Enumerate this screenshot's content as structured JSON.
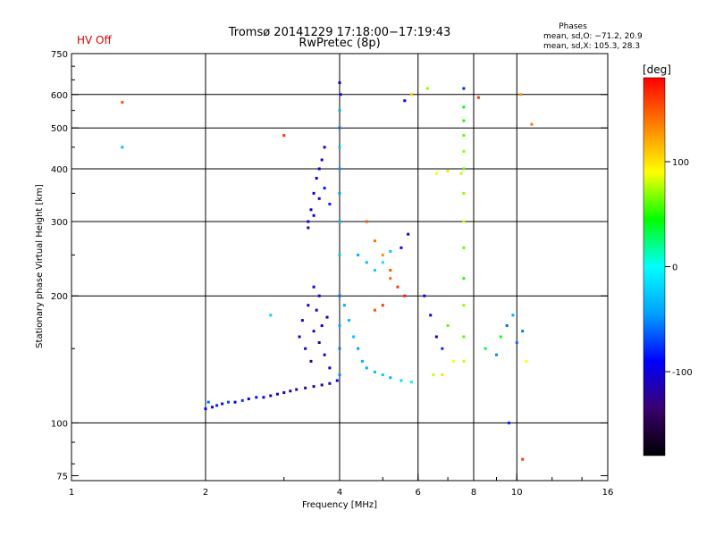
{
  "chart_data": {
    "type": "scatter",
    "title": "Tromsø 20141229 17:18:00−17:19:43",
    "subtitle": "RwPretec (8p)",
    "status_label": "HV Off",
    "status_color": "#dd0000",
    "phase_stats": {
      "heading": "Phases",
      "line1": "mean, sd,O: −71.2, 20.9",
      "line2": "mean, sd,X: 105.3, 28.3"
    },
    "xlabel": "Frequency [MHz]",
    "ylabel": "Stationary phase Virtual Height [km]",
    "x_scale": "log2",
    "y_scale": "log",
    "xlim": [
      1,
      16
    ],
    "ylim": [
      73,
      750
    ],
    "x_ticks": [
      {
        "value": 1,
        "label": "1"
      },
      {
        "value": 2,
        "label": "2"
      },
      {
        "value": 4,
        "label": "4"
      },
      {
        "value": 6,
        "label": "6"
      },
      {
        "value": 8,
        "label": "8"
      },
      {
        "value": 10,
        "label": "10"
      },
      {
        "value": 16,
        "label": "16"
      }
    ],
    "x_gridlines": [
      2,
      4,
      6,
      8,
      10
    ],
    "y_ticks": [
      {
        "value": 75,
        "label": "75"
      },
      {
        "value": 100,
        "label": "100"
      },
      {
        "value": 200,
        "label": "200"
      },
      {
        "value": 300,
        "label": "300"
      },
      {
        "value": 400,
        "label": "400"
      },
      {
        "value": 500,
        "label": "500"
      },
      {
        "value": 600,
        "label": "600"
      },
      {
        "value": 750,
        "label": "750"
      }
    ],
    "y_gridlines": [
      100,
      200,
      300,
      400,
      500,
      600
    ],
    "grid": true,
    "colorbar": {
      "label": "[deg]",
      "min": -180,
      "max": 180,
      "ticks": [
        {
          "value": 100,
          "label": "100"
        },
        {
          "value": 0,
          "label": "0"
        },
        {
          "value": -100,
          "label": "-100"
        }
      ],
      "colormap": [
        "#000000",
        "#3a0070",
        "#0000ff",
        "#00a0ff",
        "#00ffff",
        "#00ff00",
        "#ffff00",
        "#ff8000",
        "#ff0000"
      ],
      "placement": "right"
    },
    "series": [
      {
        "points": [
          [
            2.0,
            108,
            -90
          ],
          [
            2.03,
            112,
            -60
          ],
          [
            2.07,
            109,
            -95
          ],
          [
            2.12,
            110,
            -80
          ],
          [
            2.18,
            111,
            -100
          ],
          [
            2.25,
            112,
            -70
          ],
          [
            2.33,
            112,
            -90
          ],
          [
            2.42,
            113,
            -75
          ],
          [
            2.5,
            114,
            -95
          ],
          [
            2.6,
            115,
            -85
          ],
          [
            2.7,
            115,
            -100
          ],
          [
            2.8,
            116,
            -110
          ],
          [
            2.9,
            117,
            -105
          ],
          [
            3.0,
            118,
            -120
          ],
          [
            3.1,
            119,
            -115
          ],
          [
            3.2,
            120,
            -110
          ],
          [
            3.35,
            121,
            -120
          ],
          [
            3.5,
            122,
            -115
          ],
          [
            3.65,
            123,
            -120
          ],
          [
            3.8,
            124,
            -110
          ],
          [
            3.95,
            126,
            -105
          ]
        ]
      },
      {
        "points": [
          [
            3.25,
            160,
            -110
          ],
          [
            3.3,
            175,
            -100
          ],
          [
            3.35,
            150,
            -120
          ],
          [
            3.4,
            190,
            -105
          ],
          [
            3.45,
            140,
            -115
          ],
          [
            3.5,
            165,
            -100
          ],
          [
            3.55,
            185,
            -110
          ],
          [
            3.6,
            155,
            -125
          ],
          [
            3.65,
            170,
            -95
          ],
          [
            3.7,
            145,
            -115
          ],
          [
            3.75,
            178,
            -105
          ],
          [
            3.8,
            135,
            -110
          ],
          [
            3.6,
            200,
            -100
          ],
          [
            3.5,
            210,
            -95
          ]
        ]
      },
      {
        "points": [
          [
            3.4,
            300,
            -100
          ],
          [
            3.45,
            320,
            -105
          ],
          [
            3.5,
            350,
            -110
          ],
          [
            3.55,
            380,
            -100
          ],
          [
            3.6,
            400,
            -95
          ],
          [
            3.65,
            420,
            -105
          ],
          [
            3.7,
            450,
            -110
          ],
          [
            3.4,
            290,
            -120
          ],
          [
            3.5,
            310,
            -90
          ],
          [
            3.6,
            340,
            -100
          ],
          [
            3.7,
            360,
            -85
          ],
          [
            3.8,
            330,
            -80
          ]
        ]
      },
      {
        "points": [
          [
            4.0,
            640,
            -120
          ],
          [
            4.02,
            600,
            -110
          ],
          [
            4.0,
            550,
            -40
          ],
          [
            4.0,
            500,
            -60
          ],
          [
            4.0,
            450,
            -30
          ],
          [
            4.0,
            400,
            -50
          ],
          [
            4.0,
            350,
            -45
          ],
          [
            4.0,
            300,
            -40
          ],
          [
            4.0,
            250,
            -30
          ],
          [
            4.0,
            200,
            -60
          ],
          [
            4.0,
            170,
            -40
          ],
          [
            4.0,
            150,
            -55
          ],
          [
            4.0,
            130,
            -50
          ]
        ]
      },
      {
        "points": [
          [
            4.1,
            190,
            -40
          ],
          [
            4.2,
            175,
            -35
          ],
          [
            4.3,
            160,
            -30
          ],
          [
            4.4,
            150,
            -45
          ],
          [
            4.5,
            140,
            -35
          ],
          [
            4.6,
            135,
            -40
          ],
          [
            4.8,
            132,
            -30
          ],
          [
            5.0,
            130,
            -25
          ],
          [
            5.2,
            128,
            -35
          ],
          [
            5.5,
            126,
            -20
          ],
          [
            5.8,
            125,
            10
          ]
        ]
      },
      {
        "points": [
          [
            4.6,
            300,
            150
          ],
          [
            4.8,
            270,
            140
          ],
          [
            5.0,
            250,
            130
          ],
          [
            5.2,
            230,
            150
          ],
          [
            5.4,
            210,
            160
          ],
          [
            5.6,
            200,
            170
          ],
          [
            5.0,
            190,
            160
          ],
          [
            4.8,
            185,
            150
          ],
          [
            5.2,
            220,
            140
          ]
        ]
      },
      {
        "points": [
          [
            4.4,
            250,
            -40
          ],
          [
            4.6,
            240,
            -30
          ],
          [
            4.8,
            230,
            -20
          ],
          [
            5.0,
            240,
            -10
          ],
          [
            5.2,
            255,
            -25
          ],
          [
            5.5,
            260,
            -100
          ],
          [
            5.7,
            280,
            -110
          ]
        ]
      },
      {
        "points": [
          [
            6.2,
            200,
            -100
          ],
          [
            6.4,
            180,
            -90
          ],
          [
            6.6,
            160,
            -110
          ],
          [
            6.8,
            150,
            -80
          ],
          [
            7.0,
            170,
            60
          ],
          [
            7.2,
            140,
            90
          ],
          [
            6.5,
            130,
            80
          ],
          [
            6.8,
            130,
            100
          ],
          [
            7.5,
            390,
            80
          ],
          [
            6.6,
            390,
            90
          ],
          [
            7.0,
            395,
            100
          ]
        ]
      },
      {
        "points": [
          [
            7.6,
            620,
            -80
          ],
          [
            7.6,
            560,
            40
          ],
          [
            7.6,
            520,
            50
          ],
          [
            7.6,
            480,
            60
          ],
          [
            7.6,
            440,
            70
          ],
          [
            7.6,
            400,
            60
          ],
          [
            7.6,
            350,
            70
          ],
          [
            7.6,
            300,
            80
          ],
          [
            7.6,
            260,
            60
          ],
          [
            7.6,
            220,
            50
          ],
          [
            7.6,
            190,
            70
          ],
          [
            7.6,
            160,
            60
          ],
          [
            7.6,
            140,
            80
          ]
        ]
      },
      {
        "points": [
          [
            1.3,
            575,
            150
          ],
          [
            1.3,
            450,
            -30
          ],
          [
            2.8,
            180,
            -20
          ],
          [
            3.0,
            480,
            160
          ],
          [
            8.5,
            150,
            30
          ],
          [
            9.0,
            145,
            -50
          ],
          [
            9.2,
            160,
            40
          ],
          [
            9.5,
            170,
            -60
          ],
          [
            9.8,
            180,
            -40
          ],
          [
            10.0,
            155,
            -60
          ],
          [
            10.3,
            165,
            -55
          ],
          [
            10.3,
            82,
            160
          ],
          [
            10.5,
            140,
            90
          ],
          [
            10.8,
            510,
            140
          ],
          [
            10.2,
            600,
            130
          ],
          [
            9.6,
            100,
            -80
          ],
          [
            8.2,
            590,
            160
          ],
          [
            5.6,
            580,
            -90
          ],
          [
            5.8,
            600,
            110
          ],
          [
            6.3,
            620,
            70
          ]
        ]
      }
    ]
  }
}
